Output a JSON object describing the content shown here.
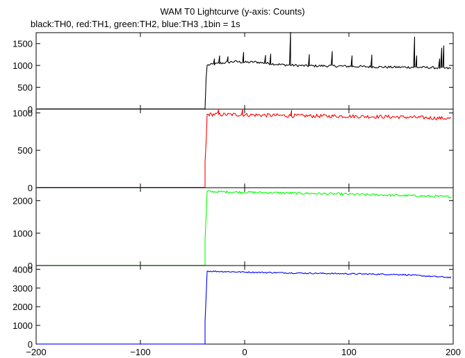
{
  "chart_data": {
    "type": "line",
    "title": "WAM T0 Lightcurve (y-axis: Counts)",
    "subtitle": "black:TH0, red:TH1, green:TH2, blue:TH3 ,1bin = 1s",
    "xlabel": "",
    "xlim": [
      -200,
      200
    ],
    "x_ticks": [
      -200,
      -100,
      0,
      100,
      200
    ],
    "x_tick_labels": [
      "−200",
      "−100",
      "0",
      "100",
      "200"
    ],
    "rise_time": -37,
    "series": [
      {
        "color": "#000000",
        "ylim": [
          0,
          1750
        ],
        "y_ticks": [
          0,
          500,
          1000,
          1500
        ],
        "y_tick_labels": [
          "0",
          "500",
          "1000",
          "1500"
        ],
        "pre_level": 5,
        "rise_steps": [
          [
            -37,
            700
          ],
          [
            -36,
            1000
          ]
        ],
        "points": [
          [
            -35,
            1010
          ],
          [
            -20,
            1060
          ],
          [
            -10,
            1090
          ],
          [
            0,
            1070
          ],
          [
            10,
            1080
          ],
          [
            25,
            1040
          ],
          [
            40,
            1010
          ],
          [
            60,
            990
          ],
          [
            80,
            990
          ],
          [
            100,
            980
          ],
          [
            120,
            970
          ],
          [
            140,
            960
          ],
          [
            160,
            960
          ],
          [
            180,
            950
          ],
          [
            198,
            930
          ]
        ],
        "noise": 28,
        "spikes": [
          [
            -29,
            1150
          ],
          [
            -24,
            1220
          ],
          [
            -16,
            1200
          ],
          [
            -1,
            1300
          ],
          [
            20,
            1230
          ],
          [
            25,
            1260
          ],
          [
            44,
            1760
          ],
          [
            62,
            1250
          ],
          [
            84,
            1320
          ],
          [
            103,
            1220
          ],
          [
            122,
            1240
          ],
          [
            165,
            1220
          ],
          [
            163,
            1650
          ],
          [
            187,
            1150
          ],
          [
            189,
            1400
          ],
          [
            191,
            1450
          ]
        ]
      },
      {
        "color": "#ff0000",
        "ylim": [
          0,
          1050
        ],
        "y_ticks": [
          0,
          500,
          1000
        ],
        "y_tick_labels": [
          "0",
          "500",
          "1000"
        ],
        "pre_level": 5,
        "rise_steps": [
          [
            -38,
            340
          ],
          [
            -37,
            600
          ],
          [
            -36,
            980
          ]
        ],
        "points": [
          [
            -35,
            980
          ],
          [
            0,
            975
          ],
          [
            50,
            960
          ],
          [
            100,
            955
          ],
          [
            150,
            945
          ],
          [
            198,
            925
          ]
        ],
        "noise": 25,
        "spikes": [
          [
            -25,
            1040
          ],
          [
            -2,
            1050
          ],
          [
            45,
            1035
          ]
        ]
      },
      {
        "color": "#00ff00",
        "ylim": [
          0,
          2400
        ],
        "y_ticks": [
          0,
          1000,
          2000
        ],
        "y_tick_labels": [
          "0",
          "1000",
          "2000"
        ],
        "pre_level": 5,
        "rise_steps": [
          [
            -38,
            800
          ],
          [
            -37,
            1500
          ],
          [
            -36,
            2300
          ]
        ],
        "points": [
          [
            -35,
            2280
          ],
          [
            0,
            2260
          ],
          [
            50,
            2230
          ],
          [
            100,
            2200
          ],
          [
            150,
            2160
          ],
          [
            198,
            2120
          ]
        ],
        "noise": 35,
        "spikes": []
      },
      {
        "color": "#0000ff",
        "ylim": [
          0,
          4200
        ],
        "y_ticks": [
          0,
          1000,
          2000,
          3000,
          4000
        ],
        "y_tick_labels": [
          "0",
          "1000",
          "2000",
          "3000",
          "4000"
        ],
        "pre_level": 5,
        "rise_steps": [
          [
            -38,
            1200
          ],
          [
            -37,
            2500
          ],
          [
            -36,
            3900
          ]
        ],
        "points": [
          [
            -35,
            3900
          ],
          [
            0,
            3850
          ],
          [
            50,
            3800
          ],
          [
            100,
            3760
          ],
          [
            150,
            3720
          ],
          [
            198,
            3560
          ]
        ],
        "noise": 35,
        "spikes": []
      }
    ]
  }
}
